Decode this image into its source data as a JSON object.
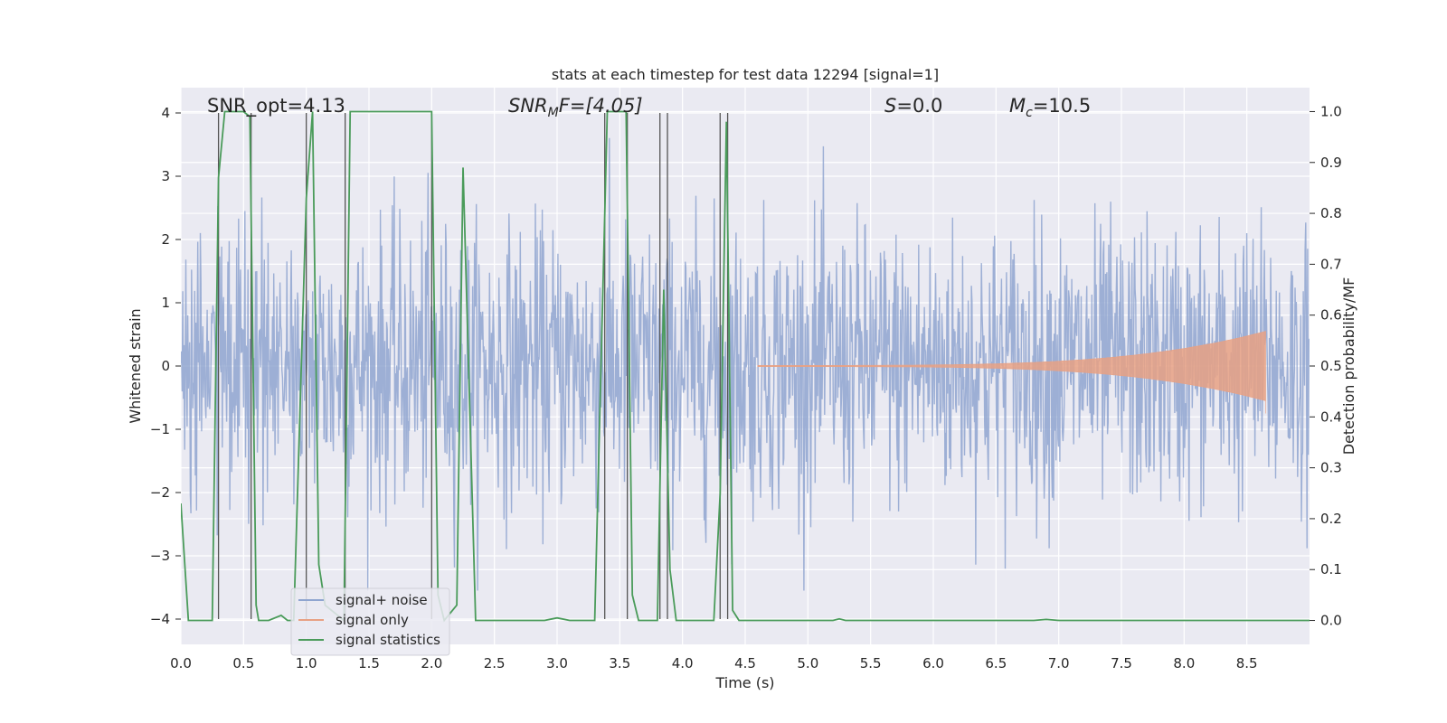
{
  "chart_data": {
    "type": "line",
    "title": "stats at each timestep for test data 12294 [signal=1]",
    "xlabel": "Time (s)",
    "ylabel_left": "Whitened strain",
    "ylabel_right": "Detection probability/MF",
    "xlim": [
      0.0,
      9.0
    ],
    "ylim_left": [
      -4.4,
      4.4
    ],
    "ylim_right": [
      -0.047,
      1.047
    ],
    "x_ticks": [
      "0.0",
      "0.5",
      "1.0",
      "1.5",
      "2.0",
      "2.5",
      "3.0",
      "3.5",
      "4.0",
      "4.5",
      "5.0",
      "5.5",
      "6.0",
      "6.5",
      "7.0",
      "7.5",
      "8.0",
      "8.5"
    ],
    "y_left_ticks": [
      "−4",
      "−3",
      "−2",
      "−1",
      "0",
      "1",
      "2",
      "3",
      "4"
    ],
    "y_right_ticks": [
      "0.0",
      "0.1",
      "0.2",
      "0.3",
      "0.4",
      "0.5",
      "0.6",
      "0.7",
      "0.8",
      "0.9",
      "1.0"
    ],
    "annotations": {
      "snr_opt": "SNR_opt=4.13",
      "snr_mf_main": "SNR",
      "snr_mf_sub": "M",
      "snr_mf_rest": "F=[4.05]",
      "s_main": "S",
      "s_rest": "=0.0",
      "mc_main": "M",
      "mc_sub": "c",
      "mc_rest": "=10.5"
    },
    "legend": [
      "signal+ noise",
      "signal only",
      "signal statistics"
    ],
    "colors": {
      "signal_noise": "#8fa5d0",
      "signal_only": "#e8a184",
      "statistics": "#4a9b5a",
      "vlines": "#555555",
      "plot_bg": "#eaeaf2",
      "grid": "#ffffff"
    },
    "noise_series": {
      "description_free": true,
      "t_start": 0.0,
      "t_end": 9.0,
      "sample_count": 1800,
      "seed": 12294,
      "rms": 1.1,
      "peak_max": 3.75,
      "peak_min": -3.55
    },
    "signal_only": {
      "t_start": 4.6,
      "t_end": 8.65,
      "amplitude_start": 0.01,
      "amplitude_end": 0.55
    },
    "statistics": {
      "x": [
        0.0,
        0.06,
        0.1,
        0.2,
        0.25,
        0.3,
        0.35,
        0.4,
        0.5,
        0.55,
        0.6,
        0.62,
        0.7,
        0.8,
        0.85,
        0.9,
        1.0,
        1.05,
        1.1,
        1.15,
        1.3,
        1.35,
        1.4,
        1.5,
        2.0,
        2.05,
        2.1,
        2.2,
        2.25,
        2.3,
        2.35,
        2.45,
        2.9,
        3.0,
        3.1,
        3.3,
        3.4,
        3.45,
        3.5,
        3.55,
        3.6,
        3.65,
        3.7,
        3.75,
        3.8,
        3.85,
        3.9,
        3.95,
        4.0,
        4.2,
        4.25,
        4.3,
        4.35,
        4.4,
        4.45,
        4.5,
        5.2,
        5.25,
        5.3,
        6.8,
        6.9,
        7.0,
        9.0
      ],
      "values": [
        0.23,
        0.0,
        0.0,
        0.0,
        0.0,
        0.87,
        1.0,
        1.0,
        1.0,
        0.99,
        0.03,
        0.0,
        0.0,
        0.01,
        0.0,
        0.0,
        0.83,
        1.0,
        0.11,
        0.03,
        0.0,
        1.0,
        1.0,
        1.0,
        1.0,
        0.05,
        0.0,
        0.03,
        0.89,
        0.45,
        0.0,
        0.0,
        0.0,
        0.005,
        0.0,
        0.0,
        1.0,
        1.0,
        1.0,
        1.0,
        0.05,
        0.0,
        0.0,
        0.0,
        0.0,
        0.65,
        0.1,
        0.0,
        0.0,
        0.0,
        0.0,
        0.25,
        0.98,
        0.02,
        0.0,
        0.0,
        0.0,
        0.003,
        0.0,
        0.0,
        0.002,
        0.0,
        0.0
      ]
    },
    "vlines_x": [
      0.3,
      0.56,
      1.0,
      1.31,
      2.0,
      3.38,
      3.56,
      3.82,
      3.88,
      4.3,
      4.36
    ]
  }
}
